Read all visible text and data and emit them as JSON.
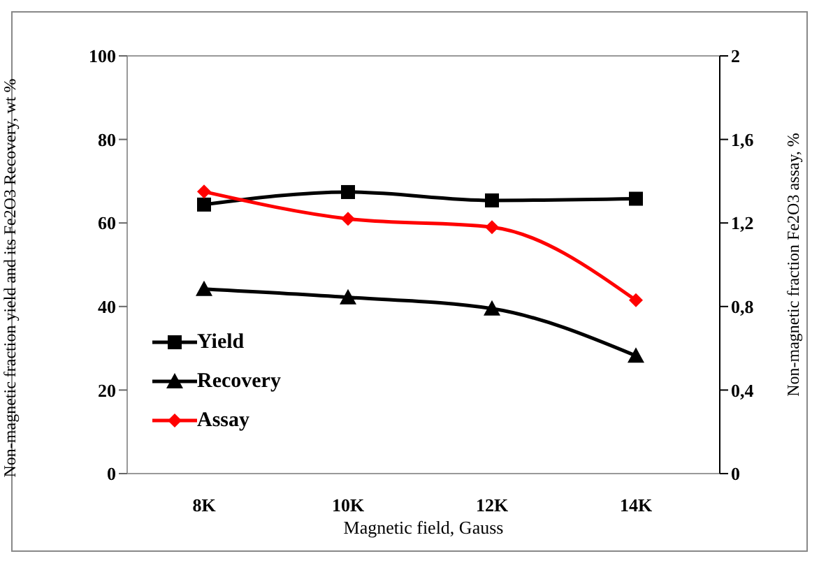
{
  "chart_data": {
    "type": "line",
    "xlabel": "Magnetic field, Gauss",
    "ylabel": "Non-magnetic fraction yield and its Fe2O3 Recovery, wt %",
    "y2label": "Non-magnetic fraction Fe2O3 assay, %",
    "categories": [
      "8K",
      "10K",
      "12K",
      "14K"
    ],
    "series": [
      {
        "name": "Yield",
        "color": "#000000",
        "marker": "square",
        "values": [
          64.4,
          67.4,
          65.4,
          65.8
        ]
      },
      {
        "name": "Recovery",
        "color": "#000000",
        "marker": "triangle",
        "values": [
          44.2,
          42.2,
          39.5,
          28.2
        ]
      },
      {
        "name": "Assay",
        "color": "#ff0000",
        "marker": "diamond",
        "axis": "y2",
        "values": [
          1.35,
          1.22,
          1.18,
          0.83
        ]
      }
    ],
    "ylim": [
      0,
      100
    ],
    "yticks": [
      0,
      20,
      40,
      60,
      80,
      100
    ],
    "y2lim": [
      0,
      2
    ],
    "y2ticks": [
      0,
      {
        "value": 0.4,
        "label": "0,4"
      },
      {
        "value": 0.8,
        "label": "0,8"
      },
      {
        "value": 1.2,
        "label": "1,2"
      },
      {
        "value": 1.6,
        "label": "1,6"
      },
      2
    ],
    "legend": "left",
    "grid": false,
    "line_style": "solid"
  }
}
